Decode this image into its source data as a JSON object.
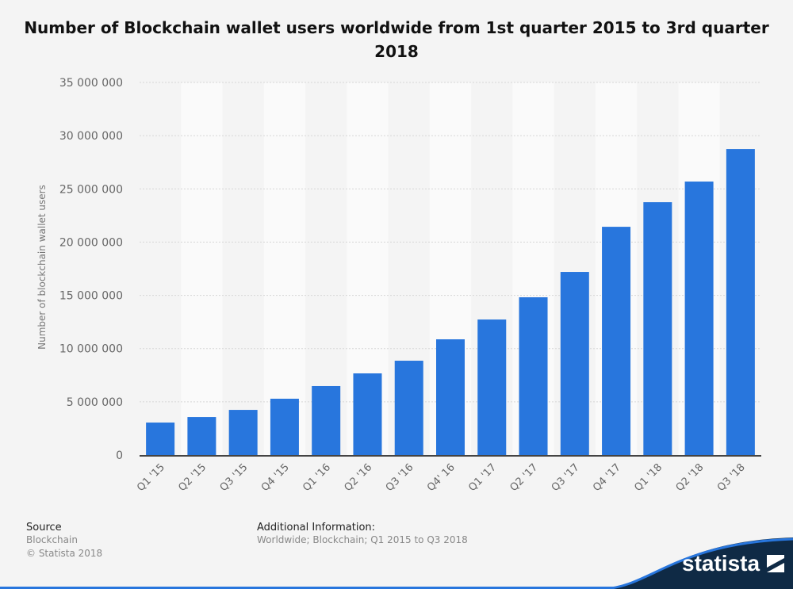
{
  "chart_data": {
    "type": "bar",
    "title": "Number of Blockchain wallet users worldwide from 1st quarter 2015 to 3rd quarter 2018",
    "ylabel": "Number of blockchain wallet users",
    "xlabel": "",
    "ylim": [
      0,
      35000000
    ],
    "yticks": [
      0,
      5000000,
      10000000,
      15000000,
      20000000,
      25000000,
      30000000,
      35000000
    ],
    "ytick_labels": [
      "0",
      "5 000 000",
      "10 000 000",
      "15 000 000",
      "20 000 000",
      "25 000 000",
      "30 000 000",
      "35 000 000"
    ],
    "categories": [
      "Q1 '15",
      "Q2 '15",
      "Q3 '15",
      "Q4 '15",
      "Q1 '16",
      "Q2 '16",
      "Q3 '16",
      "Q4' 16",
      "Q1 '17",
      "Q2 '17",
      "Q3 '17",
      "Q4 '17",
      "Q1 '18",
      "Q2 '18",
      "Q3 '18"
    ],
    "values": [
      3050000,
      3570000,
      4240000,
      5290000,
      6480000,
      7670000,
      8860000,
      10870000,
      12730000,
      14820000,
      17200000,
      21440000,
      23750000,
      25690000,
      28740000
    ],
    "grid": true,
    "bar_color": "#2876dd"
  },
  "footer": {
    "source_heading": "Source",
    "source": "Blockchain",
    "copyright": "© Statista 2018",
    "info_heading": "Additional Information:",
    "info": "Worldwide; Blockchain; Q1 2015 to Q3 2018",
    "logo_text": "statista"
  }
}
